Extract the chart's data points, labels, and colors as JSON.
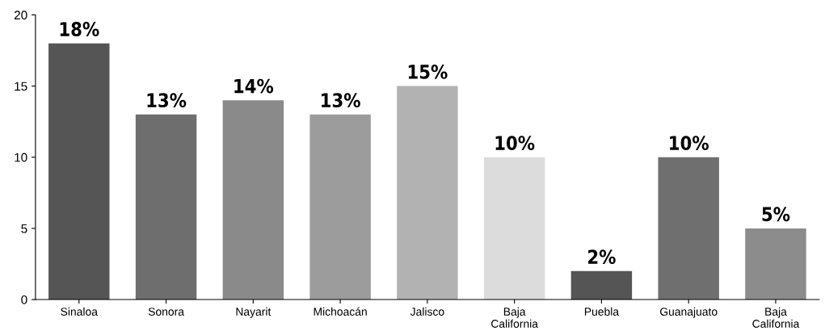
{
  "chart_data": {
    "type": "bar",
    "categories": [
      "Sinaloa",
      "Sonora",
      "Nayarit",
      "Michoacán",
      "Jalisco",
      "Baja\nCalifornia",
      "Puebla",
      "Guanajuato",
      "Baja\nCalifornia"
    ],
    "values": [
      18,
      13,
      14,
      13,
      15,
      10,
      2,
      10,
      5
    ],
    "value_labels": [
      "18%",
      "13%",
      "14%",
      "13%",
      "15%",
      "10%",
      "2%",
      "10%",
      "5%"
    ],
    "colors": [
      "#555555",
      "#6e6e6e",
      "#8a8a8a",
      "#9c9c9c",
      "#b2b2b2",
      "#dcdcdc",
      "#555555",
      "#6f6f6f",
      "#8c8c8c"
    ],
    "ylim": [
      0,
      20
    ],
    "yticks": [
      0,
      5,
      10,
      15,
      20
    ],
    "grid": false,
    "legend": false
  }
}
